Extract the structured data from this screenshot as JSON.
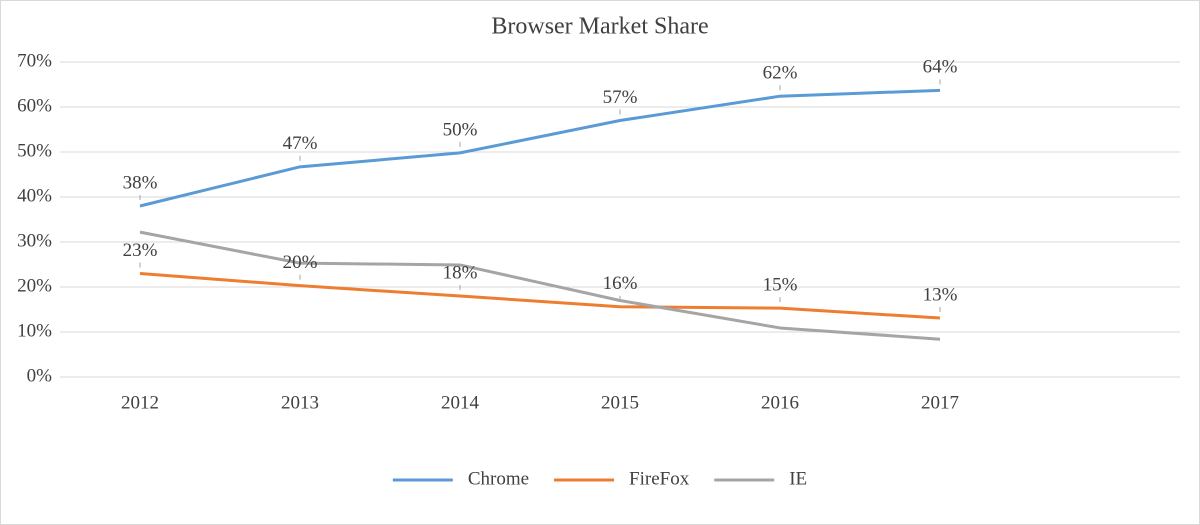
{
  "chart_data": {
    "type": "line",
    "title": "Browser Market Share",
    "categories": [
      "2012",
      "2013",
      "2014",
      "2015",
      "2016",
      "2017",
      null
    ],
    "series": [
      {
        "name": "Chrome",
        "color": "#5b9bd5",
        "values": [
          38,
          46.7,
          49.8,
          57,
          62.4,
          63.7,
          null
        ],
        "value_labels": [
          "38%",
          "47%",
          "50%",
          "57%",
          "62%",
          "64%",
          null
        ]
      },
      {
        "name": "FireFox",
        "color": "#ed7d31",
        "values": [
          23,
          20.3,
          18,
          15.6,
          15.3,
          13.1,
          null
        ],
        "value_labels": [
          "23%",
          "20%",
          "18%",
          "16%",
          "15%",
          "13%",
          null
        ]
      },
      {
        "name": "IE",
        "color": "#a5a5a5",
        "values": [
          32.2,
          25.3,
          24.9,
          17,
          10.9,
          8.4,
          null
        ]
      }
    ],
    "ylim": [
      0,
      70
    ],
    "yticks": [
      {
        "value": 0,
        "label": "0%"
      },
      {
        "value": 10,
        "label": "10%"
      },
      {
        "value": 20,
        "label": "20%"
      },
      {
        "value": 30,
        "label": "30%"
      },
      {
        "value": 40,
        "label": "40%"
      },
      {
        "value": 50,
        "label": "50%"
      },
      {
        "value": 60,
        "label": "60%"
      },
      {
        "value": 70,
        "label": "70%"
      }
    ],
    "grid": true,
    "legend": "bottom"
  }
}
